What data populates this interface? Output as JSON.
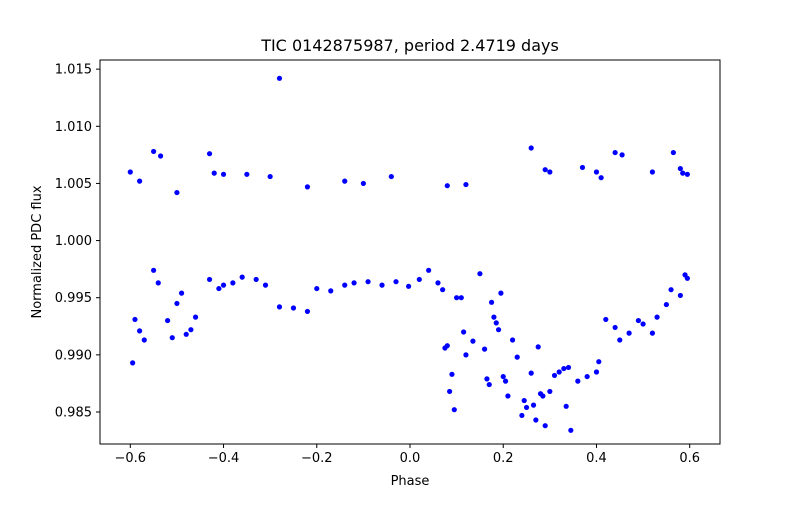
{
  "chart_data": {
    "type": "scatter",
    "title": "TIC 0142875987, period 2.4719 days",
    "xlabel": "Phase",
    "ylabel": "Normalized PDC flux",
    "xlim": [
      -0.665,
      0.665
    ],
    "ylim": [
      0.9822,
      1.0158
    ],
    "x_ticks": [
      -0.6,
      -0.4,
      -0.2,
      0.0,
      0.2,
      0.4,
      0.6
    ],
    "x_tick_labels": [
      "−0.6",
      "−0.4",
      "−0.2",
      "0.0",
      "0.2",
      "0.4",
      "0.6"
    ],
    "y_ticks": [
      0.985,
      0.99,
      0.995,
      1.0,
      1.005,
      1.01,
      1.015
    ],
    "y_tick_labels": [
      "0.985",
      "0.990",
      "0.995",
      "1.000",
      "1.005",
      "1.010",
      "1.015"
    ],
    "grid": false,
    "marker_color": "#0000ff",
    "points": [
      [
        -0.595,
        0.9893
      ],
      [
        -0.59,
        0.9931
      ],
      [
        -0.58,
        0.9921
      ],
      [
        -0.57,
        0.9913
      ],
      [
        -0.55,
        0.9974
      ],
      [
        -0.54,
        0.9963
      ],
      [
        -0.52,
        0.993
      ],
      [
        -0.51,
        0.9915
      ],
      [
        -0.5,
        0.9945
      ],
      [
        -0.49,
        0.9954
      ],
      [
        -0.48,
        0.9918
      ],
      [
        -0.47,
        0.9922
      ],
      [
        -0.46,
        0.9933
      ],
      [
        -0.43,
        0.9966
      ],
      [
        -0.41,
        0.9958
      ],
      [
        -0.4,
        0.9961
      ],
      [
        -0.38,
        0.9963
      ],
      [
        -0.36,
        0.9968
      ],
      [
        -0.33,
        0.9966
      ],
      [
        -0.31,
        0.9961
      ],
      [
        -0.28,
        0.9942
      ],
      [
        -0.25,
        0.9941
      ],
      [
        -0.22,
        0.9938
      ],
      [
        -0.2,
        0.9958
      ],
      [
        -0.17,
        0.9956
      ],
      [
        -0.14,
        0.9961
      ],
      [
        -0.12,
        0.9963
      ],
      [
        -0.09,
        0.9964
      ],
      [
        -0.06,
        0.9961
      ],
      [
        -0.03,
        0.9964
      ],
      [
        -0.003,
        0.996
      ],
      [
        0.02,
        0.9966
      ],
      [
        0.04,
        0.9974
      ],
      [
        0.06,
        0.9963
      ],
      [
        0.07,
        0.9957
      ],
      [
        0.075,
        0.9906
      ],
      [
        0.08,
        0.9908
      ],
      [
        0.085,
        0.9868
      ],
      [
        0.09,
        0.9883
      ],
      [
        0.095,
        0.9852
      ],
      [
        0.1,
        0.995
      ],
      [
        0.11,
        0.995
      ],
      [
        0.115,
        0.992
      ],
      [
        0.12,
        0.99
      ],
      [
        0.135,
        0.9912
      ],
      [
        0.15,
        0.9971
      ],
      [
        0.16,
        0.9905
      ],
      [
        0.165,
        0.9879
      ],
      [
        0.17,
        0.9874
      ],
      [
        0.175,
        0.9946
      ],
      [
        0.18,
        0.9933
      ],
      [
        0.185,
        0.9928
      ],
      [
        0.19,
        0.9922
      ],
      [
        0.195,
        0.9954
      ],
      [
        0.2,
        0.9881
      ],
      [
        0.205,
        0.9877
      ],
      [
        0.21,
        0.9864
      ],
      [
        0.22,
        0.9913
      ],
      [
        0.23,
        0.9898
      ],
      [
        0.24,
        0.9847
      ],
      [
        0.245,
        0.986
      ],
      [
        0.25,
        0.9854
      ],
      [
        0.26,
        0.9884
      ],
      [
        0.265,
        0.9856
      ],
      [
        0.27,
        0.9843
      ],
      [
        0.275,
        0.9907
      ],
      [
        0.28,
        0.9866
      ],
      [
        0.285,
        0.9864
      ],
      [
        0.29,
        0.9838
      ],
      [
        0.3,
        0.9868
      ],
      [
        0.31,
        0.9882
      ],
      [
        0.32,
        0.9885
      ],
      [
        0.33,
        0.9888
      ],
      [
        0.335,
        0.9855
      ],
      [
        0.34,
        0.9889
      ],
      [
        0.345,
        0.9834
      ],
      [
        0.36,
        0.9877
      ],
      [
        0.38,
        0.9881
      ],
      [
        0.4,
        0.9885
      ],
      [
        0.405,
        0.9894
      ],
      [
        0.42,
        0.9931
      ],
      [
        0.44,
        0.9924
      ],
      [
        0.45,
        0.9913
      ],
      [
        0.47,
        0.9919
      ],
      [
        0.49,
        0.993
      ],
      [
        0.5,
        0.9927
      ],
      [
        0.52,
        0.9919
      ],
      [
        0.53,
        0.9933
      ],
      [
        0.55,
        0.9944
      ],
      [
        0.56,
        0.9957
      ],
      [
        0.58,
        0.9952
      ],
      [
        0.59,
        0.997
      ],
      [
        0.595,
        0.9967
      ],
      [
        -0.28,
        1.0142
      ],
      [
        -0.6,
        1.006
      ],
      [
        -0.58,
        1.0052
      ],
      [
        -0.55,
        1.0078
      ],
      [
        -0.535,
        1.0074
      ],
      [
        -0.5,
        1.0042
      ],
      [
        -0.43,
        1.0076
      ],
      [
        -0.42,
        1.0059
      ],
      [
        -0.4,
        1.0058
      ],
      [
        -0.35,
        1.0058
      ],
      [
        -0.3,
        1.0056
      ],
      [
        -0.22,
        1.0047
      ],
      [
        -0.14,
        1.0052
      ],
      [
        -0.1,
        1.005
      ],
      [
        -0.04,
        1.0056
      ],
      [
        0.08,
        1.0048
      ],
      [
        0.12,
        1.0049
      ],
      [
        0.26,
        1.0081
      ],
      [
        0.29,
        1.0062
      ],
      [
        0.3,
        1.006
      ],
      [
        0.37,
        1.0064
      ],
      [
        0.4,
        1.006
      ],
      [
        0.41,
        1.0055
      ],
      [
        0.44,
        1.0077
      ],
      [
        0.455,
        1.0075
      ],
      [
        0.52,
        1.006
      ],
      [
        0.565,
        1.0077
      ],
      [
        0.58,
        1.0063
      ],
      [
        0.585,
        1.0059
      ],
      [
        0.595,
        1.0058
      ]
    ]
  }
}
